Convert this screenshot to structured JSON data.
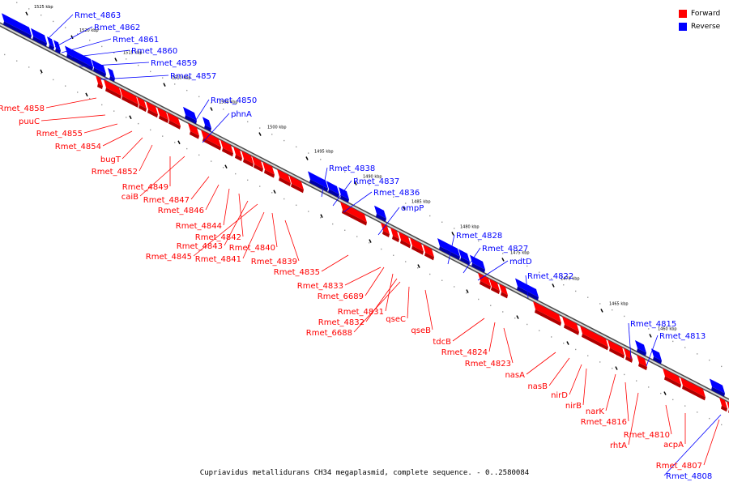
{
  "legend": {
    "forward": {
      "label": "Forward",
      "color": "#ff0000"
    },
    "reverse": {
      "label": "Reverse",
      "color": "#0000ff"
    }
  },
  "caption": "Cupriavidus metallidurans CH34 megaplasmid, complete sequence. - 0..2580084",
  "scale_labels": [
    "1525 kbp",
    "1520 kbp",
    "1515 kbp",
    "1510 kbp",
    "1505 kbp",
    "1500 kbp",
    "1495 kbp",
    "1490 kbp",
    "1485 kbp",
    "1480 kbp",
    "1475 kbp",
    "1470 kbp",
    "1465 kbp",
    "1460 kbp"
  ],
  "reverse_genes": [
    "Rmet_4863",
    "Rmet_4862",
    "Rmet_4861",
    "Rmet_4860",
    "Rmet_4859",
    "Rmet_4857",
    "Rmet_4850",
    "phnA",
    "Rmet_4838",
    "Rmet_4837",
    "Rmet_4836",
    "ompP",
    "Rmet_4828",
    "Rmet_4827",
    "mdtD",
    "Rmet_4822",
    "Rmet_4815",
    "Rmet_4813",
    "Rmet_4808"
  ],
  "forward_genes": [
    "Rmet_4858",
    "puuC",
    "Rmet_4855",
    "Rmet_4854",
    "bugT",
    "Rmet_4852",
    "Rmet_4849",
    "caiB",
    "Rmet_4847",
    "Rmet_4846",
    "Rmet_4844",
    "Rmet_4842",
    "Rmet_4843",
    "Rmet_4845",
    "Rmet_4840",
    "Rmet_4841",
    "Rmet_4839",
    "Rmet_4835",
    "Rmet_4833",
    "Rmet_6689",
    "Rmet_4831",
    "Rmet_4832",
    "Rmet_6688",
    "qseC",
    "qseB",
    "tdcB",
    "Rmet_4824",
    "Rmet_4823",
    "nasA",
    "nasB",
    "nirD",
    "nirB",
    "narK",
    "Rmet_4816",
    "rhtA",
    "Rmet_4810",
    "acpA",
    "Rmet_4807"
  ]
}
